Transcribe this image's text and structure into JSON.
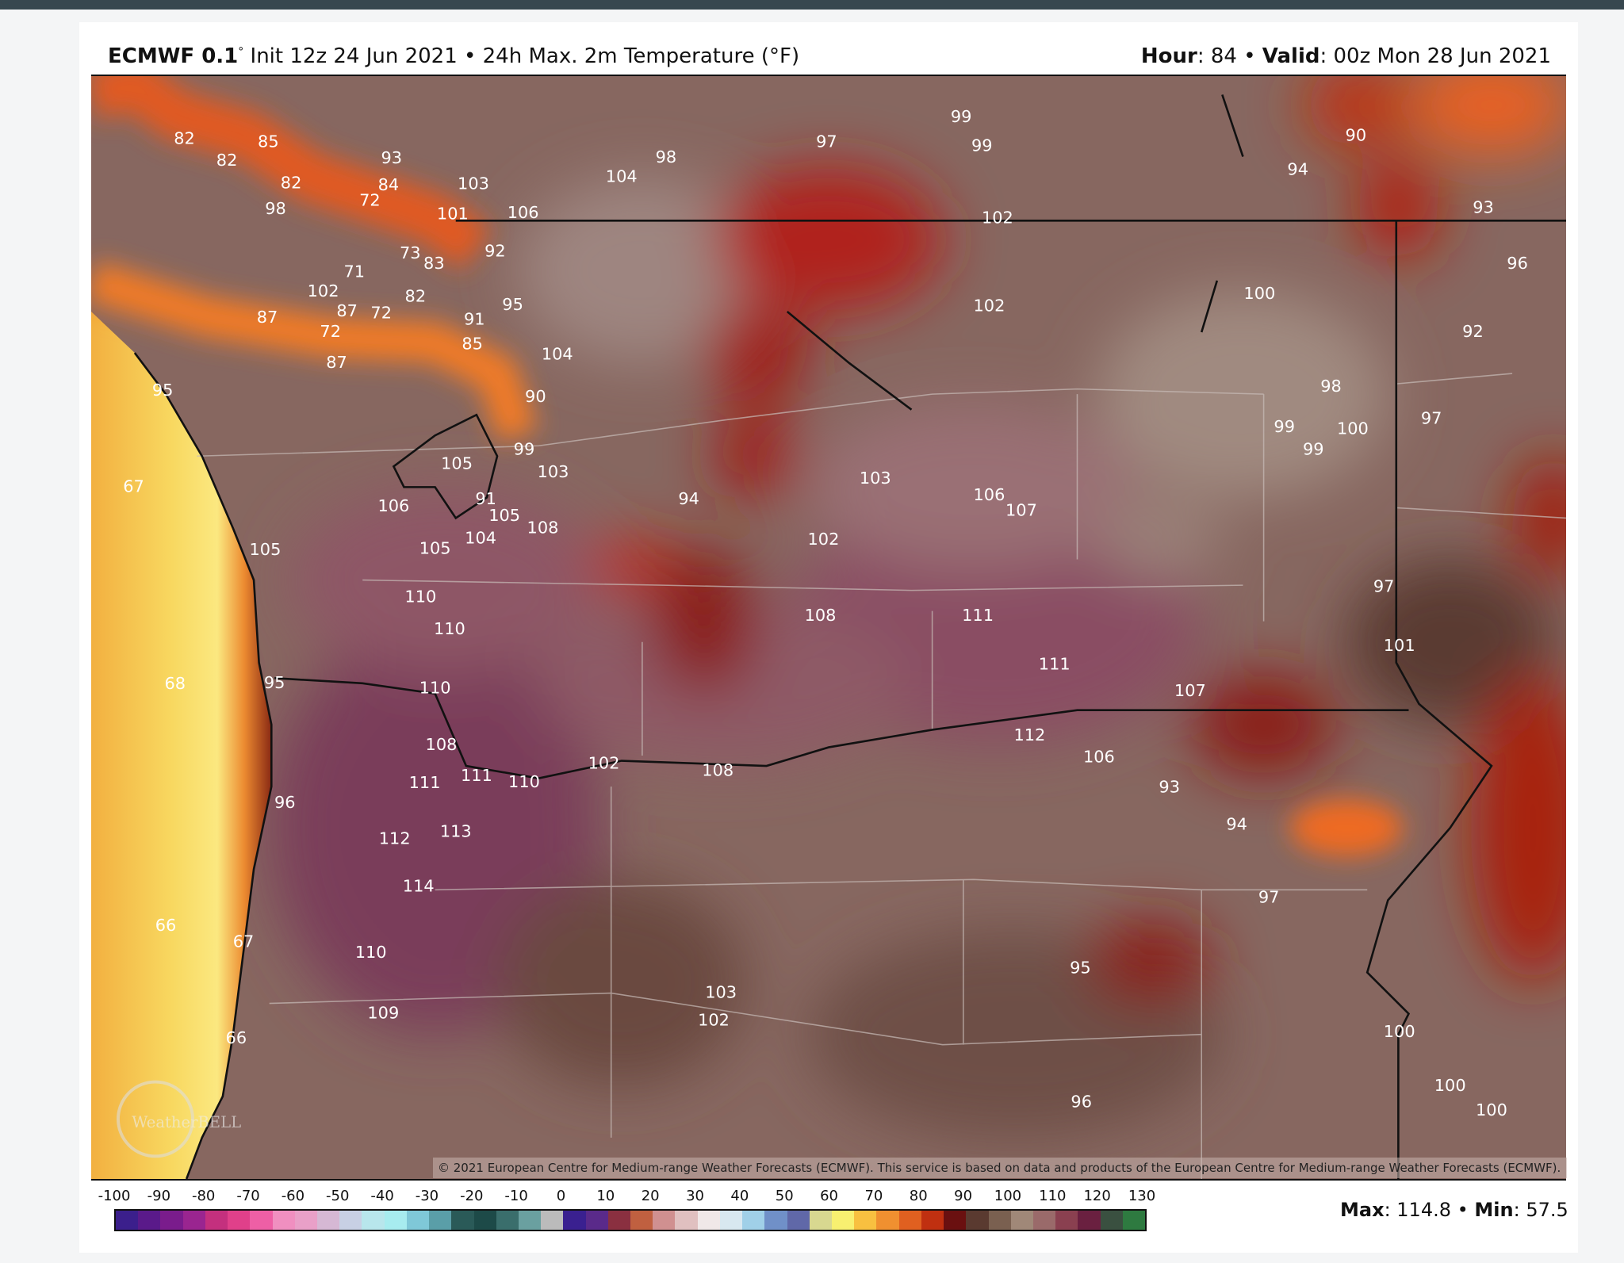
{
  "header": {
    "model": "ECMWF 0.1",
    "degree": "°",
    "init": "Init 12z 24 Jun 2021",
    "separator": "•",
    "product": "24h Max. 2m Temperature (°F)",
    "hour_label": "Hour",
    "hour_value": ": 84",
    "valid_label": "Valid",
    "valid_value": ": 00z Mon 28 Jun 2021"
  },
  "map": {
    "region": "Pacific Northwest (Washington, Oregon, Idaho)",
    "temperature_labels": [
      "82",
      "85",
      "82",
      "93",
      "84",
      "82",
      "72",
      "98",
      "103",
      "104",
      "98",
      "97",
      "99",
      "99",
      "90",
      "94",
      "93",
      "101",
      "106",
      "102",
      "92",
      "73",
      "83",
      "96",
      "102",
      "71",
      "82",
      "95",
      "87",
      "72",
      "87",
      "102",
      "100",
      "91",
      "72",
      "85",
      "92",
      "104",
      "87",
      "95",
      "90",
      "98",
      "97",
      "99",
      "99",
      "100",
      "99",
      "103",
      "105",
      "103",
      "67",
      "106",
      "107",
      "94",
      "91",
      "106",
      "105",
      "104",
      "108",
      "102",
      "105",
      "105",
      "97",
      "110",
      "108",
      "111",
      "110",
      "101",
      "111",
      "68",
      "95",
      "110",
      "107",
      "112",
      "108",
      "106",
      "102",
      "108",
      "111",
      "110",
      "111",
      "93",
      "96",
      "94",
      "113",
      "112",
      "114",
      "97",
      "66",
      "67",
      "110",
      "95",
      "103",
      "109",
      "102",
      "100",
      "66",
      "96",
      "100",
      "100"
    ],
    "watermark": "WeatherBELL",
    "copyright": "© 2021 European Centre for Medium-range Weather Forecasts (ECMWF). This service is based on data and products of the European Centre for Medium-range Weather Forecasts (ECMWF)."
  },
  "colorbar": {
    "labels": [
      "-100",
      "-90",
      "-80",
      "-70",
      "-60",
      "-50",
      "-40",
      "-30",
      "-20",
      "-10",
      "0",
      "10",
      "20",
      "30",
      "40",
      "50",
      "60",
      "70",
      "80",
      "90",
      "100",
      "110",
      "120",
      "130"
    ],
    "colors": [
      "#3b1f8c",
      "#5a1a8a",
      "#7a1c8c",
      "#9a2590",
      "#c4307e",
      "#e0408a",
      "#ee5fa5",
      "#f08fc0",
      "#e9a0c8",
      "#d6b8d4",
      "#c8d0e4",
      "#b8e6ec",
      "#a7ecef",
      "#7fc8d8",
      "#5a9ea8",
      "#2a5a58",
      "#1d4a48",
      "#3a6e6c",
      "#6aa0a0",
      "#bbbbbb",
      "#3a2090",
      "#5a2a8a",
      "#8a3040",
      "#c06040",
      "#d09090",
      "#e0c0c0",
      "#f0e8e8",
      "#d8e8f0",
      "#a0d0e8",
      "#7090c8",
      "#6068a8",
      "#d8d890",
      "#f8f070",
      "#f8c040",
      "#f09030",
      "#e06020",
      "#c03010",
      "#6a1010",
      "#5a3a30",
      "#7a6050",
      "#a08878",
      "#9a6a6a",
      "#8a4050",
      "#6a2040",
      "#3a5040",
      "#2e7a40"
    ]
  },
  "stats": {
    "max_label": "Max",
    "max_value": ": 114.8",
    "min_label": "Min",
    "min_value": ": 57.5"
  }
}
